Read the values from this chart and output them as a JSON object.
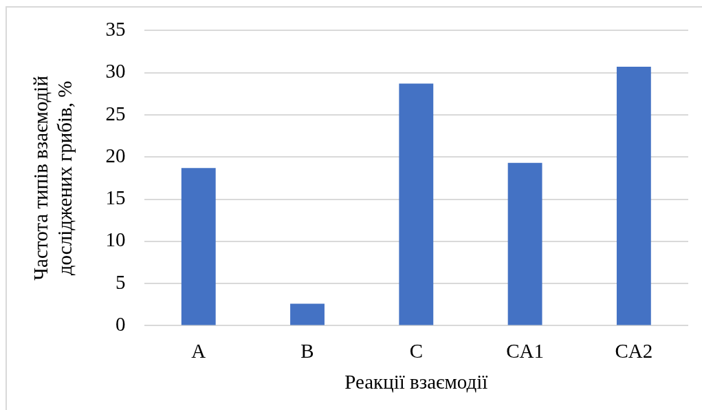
{
  "chart_data": {
    "type": "bar",
    "categories": [
      "A",
      "B",
      "C",
      "CA1",
      "CA2"
    ],
    "values": [
      18.7,
      2.6,
      28.7,
      19.3,
      30.7
    ],
    "color": "#4472c4",
    "xlabel": "Реакції взаємодії",
    "ylabel": "Частота типів взаємодій досліджених грибів, %",
    "ylim": [
      0,
      35
    ],
    "yticks": [
      0,
      5,
      10,
      15,
      20,
      25,
      30,
      35
    ],
    "grid": "y"
  }
}
